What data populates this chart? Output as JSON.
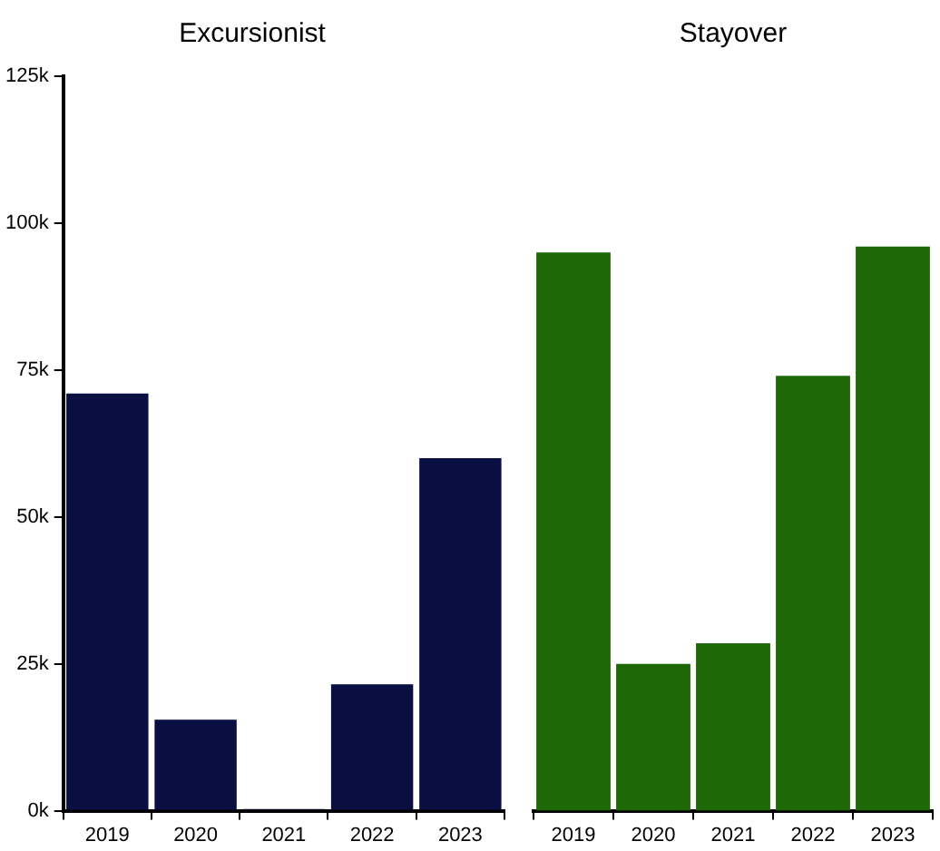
{
  "chart_data": [
    {
      "type": "bar",
      "title": "Excursionist",
      "categories": [
        "2019",
        "2020",
        "2021",
        "2022",
        "2023"
      ],
      "values": [
        71000,
        15500,
        300,
        21500,
        60000
      ],
      "color": "#0a0f42",
      "ylim": [
        0,
        125000
      ],
      "yticks": [
        {
          "value": 0,
          "label": "0k"
        },
        {
          "value": 25000,
          "label": "25k"
        },
        {
          "value": 50000,
          "label": "50k"
        },
        {
          "value": 75000,
          "label": "75k"
        },
        {
          "value": 100000,
          "label": "100k"
        },
        {
          "value": 125000,
          "label": "125k"
        }
      ],
      "grid": false,
      "legend": false
    },
    {
      "type": "bar",
      "title": "Stayover",
      "categories": [
        "2019",
        "2020",
        "2021",
        "2022",
        "2023"
      ],
      "values": [
        95000,
        25000,
        28500,
        74000,
        96000
      ],
      "color": "#1f6808",
      "ylim": [
        0,
        125000
      ],
      "tick_labels": "x",
      "grid": false,
      "legend": false
    }
  ]
}
